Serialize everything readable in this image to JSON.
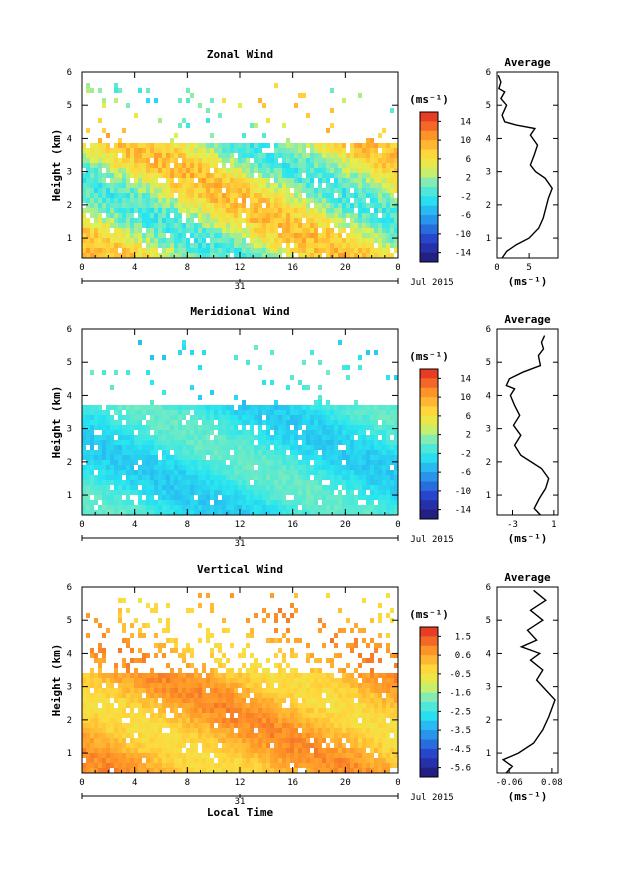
{
  "chart_data": [
    {
      "type": "heatmap",
      "title": "Zonal Wind",
      "ylabel": "Height (km)",
      "xlabel": "",
      "x_ticks": [
        "0",
        "4",
        "8",
        "12",
        "16",
        "20",
        "0"
      ],
      "y_ticks": [
        "1",
        "2",
        "3",
        "4",
        "5",
        "6"
      ],
      "xlim": [
        0,
        24
      ],
      "ylim": [
        0.4,
        6
      ],
      "date_tick": "31",
      "date_label": "Jul 2015",
      "colorbar": {
        "unit": "(ms⁻¹)",
        "min": -15,
        "max": 16,
        "ticks": [
          "14",
          "10",
          "6",
          "2",
          "-2",
          "-6",
          "-10",
          "-14"
        ]
      },
      "field": {
        "top_of_data_km": 4.0,
        "mean_ms": 4,
        "amplitude_ms": 6,
        "upper_sparse_km": [
          4.0,
          5.8
        ]
      },
      "average": {
        "title": "Average",
        "xlabel": "(ms⁻¹)",
        "x_ticks": [
          "0",
          "5"
        ],
        "xlim": [
          0,
          9.5
        ],
        "y_ticks": [
          "1",
          "2",
          "3",
          "4",
          "5",
          "6"
        ],
        "ylim": [
          0.4,
          6
        ],
        "profile": [
          [
            0.8,
            0.4
          ],
          [
            1.5,
            0.6
          ],
          [
            3.0,
            0.8
          ],
          [
            5.0,
            1.0
          ],
          [
            6.5,
            1.3
          ],
          [
            7.2,
            1.6
          ],
          [
            7.6,
            1.9
          ],
          [
            8.0,
            2.2
          ],
          [
            8.6,
            2.5
          ],
          [
            7.5,
            2.8
          ],
          [
            6.0,
            3.0
          ],
          [
            5.2,
            3.2
          ],
          [
            5.8,
            3.5
          ],
          [
            6.3,
            3.8
          ],
          [
            5.2,
            4.1
          ],
          [
            5.9,
            4.3
          ],
          [
            3.0,
            4.4
          ],
          [
            1.2,
            4.5
          ],
          [
            0.8,
            4.7
          ],
          [
            1.5,
            5.0
          ],
          [
            0.6,
            5.2
          ],
          [
            1.2,
            5.4
          ],
          [
            0.3,
            5.5
          ],
          [
            0.6,
            5.7
          ],
          [
            0.2,
            5.9
          ]
        ]
      }
    },
    {
      "type": "heatmap",
      "title": "Meridional Wind",
      "ylabel": "Height (km)",
      "xlabel": "",
      "x_ticks": [
        "0",
        "4",
        "8",
        "12",
        "16",
        "20",
        "0"
      ],
      "y_ticks": [
        "1",
        "2",
        "3",
        "4",
        "5",
        "6"
      ],
      "xlim": [
        0,
        24
      ],
      "ylim": [
        0.4,
        6
      ],
      "date_tick": "31",
      "date_label": "Jul 2015",
      "colorbar": {
        "unit": "(ms⁻¹)",
        "min": -15,
        "max": 16,
        "ticks": [
          "14",
          "10",
          "6",
          "2",
          "-2",
          "-6",
          "-10",
          "-14"
        ]
      },
      "field": {
        "top_of_data_km": 3.8,
        "mean_ms": -1.5,
        "amplitude_ms": 2.5,
        "upper_sparse_km": [
          3.8,
          5.8
        ]
      },
      "average": {
        "title": "Average",
        "xlabel": "(ms⁻¹)",
        "x_ticks": [
          "-3",
          "1"
        ],
        "xlim": [
          -4.5,
          1.4
        ],
        "y_ticks": [
          "1",
          "2",
          "3",
          "4",
          "5",
          "6"
        ],
        "ylim": [
          0.4,
          6
        ],
        "profile": [
          [
            -0.3,
            0.4
          ],
          [
            -0.9,
            0.6
          ],
          [
            -0.4,
            0.9
          ],
          [
            0.2,
            1.2
          ],
          [
            0.5,
            1.5
          ],
          [
            -0.2,
            1.8
          ],
          [
            -1.2,
            2.0
          ],
          [
            -2.2,
            2.2
          ],
          [
            -2.8,
            2.5
          ],
          [
            -2.2,
            2.8
          ],
          [
            -2.9,
            3.1
          ],
          [
            -2.3,
            3.4
          ],
          [
            -2.8,
            3.7
          ],
          [
            -3.2,
            4.0
          ],
          [
            -2.8,
            4.2
          ],
          [
            -3.6,
            4.3
          ],
          [
            -3.3,
            4.5
          ],
          [
            -2.0,
            4.7
          ],
          [
            -0.3,
            4.9
          ],
          [
            -0.5,
            5.2
          ],
          [
            0.0,
            5.4
          ],
          [
            -0.2,
            5.6
          ],
          [
            0.1,
            5.8
          ]
        ]
      }
    },
    {
      "type": "heatmap",
      "title": "Vertical Wind",
      "ylabel": "Height (km)",
      "xlabel": "Local Time",
      "x_ticks": [
        "0",
        "4",
        "8",
        "12",
        "16",
        "20",
        "0"
      ],
      "y_ticks": [
        "1",
        "2",
        "3",
        "4",
        "5",
        "6"
      ],
      "xlim": [
        0,
        24
      ],
      "ylim": [
        0.4,
        6
      ],
      "date_tick": "31",
      "date_label": "Jul 2015",
      "colorbar": {
        "unit": "(ms⁻¹)",
        "min": -5.9,
        "max": 2.1,
        "ticks": [
          "1.5",
          "0.6",
          "-0.5",
          "-1.6",
          "-2.5",
          "-3.5",
          "-4.5",
          "-5.6"
        ]
      },
      "field": {
        "top_of_data_km": 3.5,
        "mean_ms": 0.3,
        "amplitude_ms": 0.8,
        "upper_sparse_km": [
          3.5,
          5.9
        ]
      },
      "average": {
        "title": "Average",
        "xlabel": "(ms⁻¹)",
        "x_ticks": [
          "-0.06",
          "0.08"
        ],
        "xlim": [
          -0.1,
          0.1
        ],
        "y_ticks": [
          "1",
          "2",
          "3",
          "4",
          "5",
          "6"
        ],
        "ylim": [
          0.4,
          6
        ],
        "profile": [
          [
            -0.07,
            0.4
          ],
          [
            -0.05,
            0.6
          ],
          [
            -0.08,
            0.8
          ],
          [
            -0.03,
            1.0
          ],
          [
            0.02,
            1.3
          ],
          [
            0.05,
            1.7
          ],
          [
            0.07,
            2.1
          ],
          [
            0.09,
            2.6
          ],
          [
            0.06,
            2.9
          ],
          [
            0.03,
            3.2
          ],
          [
            0.05,
            3.5
          ],
          [
            0.01,
            3.8
          ],
          [
            0.04,
            4.0
          ],
          [
            -0.02,
            4.2
          ],
          [
            0.03,
            4.4
          ],
          [
            0.0,
            4.7
          ],
          [
            0.05,
            5.0
          ],
          [
            0.01,
            5.3
          ],
          [
            0.06,
            5.6
          ],
          [
            0.02,
            5.9
          ]
        ]
      }
    }
  ]
}
